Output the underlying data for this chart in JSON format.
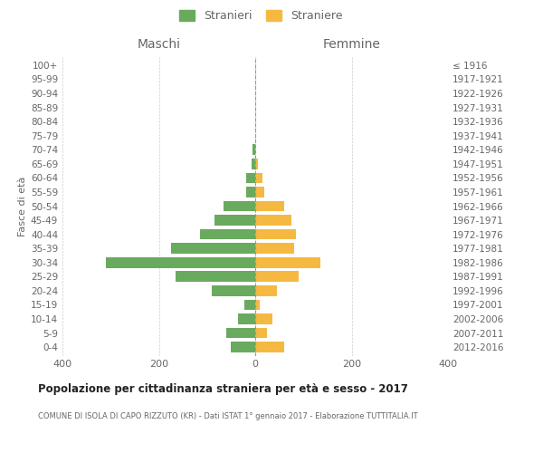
{
  "age_groups": [
    "100+",
    "95-99",
    "90-94",
    "85-89",
    "80-84",
    "75-79",
    "70-74",
    "65-69",
    "60-64",
    "55-59",
    "50-54",
    "45-49",
    "40-44",
    "35-39",
    "30-34",
    "25-29",
    "20-24",
    "15-19",
    "10-14",
    "5-9",
    "0-4"
  ],
  "birth_years": [
    "≤ 1916",
    "1917-1921",
    "1922-1926",
    "1927-1931",
    "1932-1936",
    "1937-1941",
    "1942-1946",
    "1947-1951",
    "1952-1956",
    "1957-1961",
    "1962-1966",
    "1967-1971",
    "1972-1976",
    "1977-1981",
    "1982-1986",
    "1987-1991",
    "1992-1996",
    "1997-2001",
    "2002-2006",
    "2007-2011",
    "2012-2016"
  ],
  "males": [
    0,
    0,
    0,
    0,
    0,
    0,
    5,
    7,
    18,
    18,
    65,
    85,
    115,
    175,
    310,
    165,
    90,
    22,
    35,
    60,
    50
  ],
  "females": [
    0,
    0,
    0,
    0,
    0,
    0,
    0,
    5,
    15,
    18,
    60,
    75,
    85,
    80,
    135,
    90,
    45,
    10,
    35,
    25,
    60
  ],
  "male_color": "#6aaa5e",
  "female_color": "#f5b942",
  "grid_color": "#cccccc",
  "text_color": "#666666",
  "title": "Popolazione per cittadinanza straniera per età e sesso - 2017",
  "subtitle": "COMUNE DI ISOLA DI CAPO RIZZUTO (KR) - Dati ISTAT 1° gennaio 2017 - Elaborazione TUTTITALIA.IT",
  "ylabel_left": "Fasce di età",
  "xlabel_left": "Maschi",
  "xlabel_right": "Femmine",
  "legend_stranieri": "Stranieri",
  "legend_straniere": "Straniere",
  "xlim": 400,
  "background_color": "#ffffff"
}
